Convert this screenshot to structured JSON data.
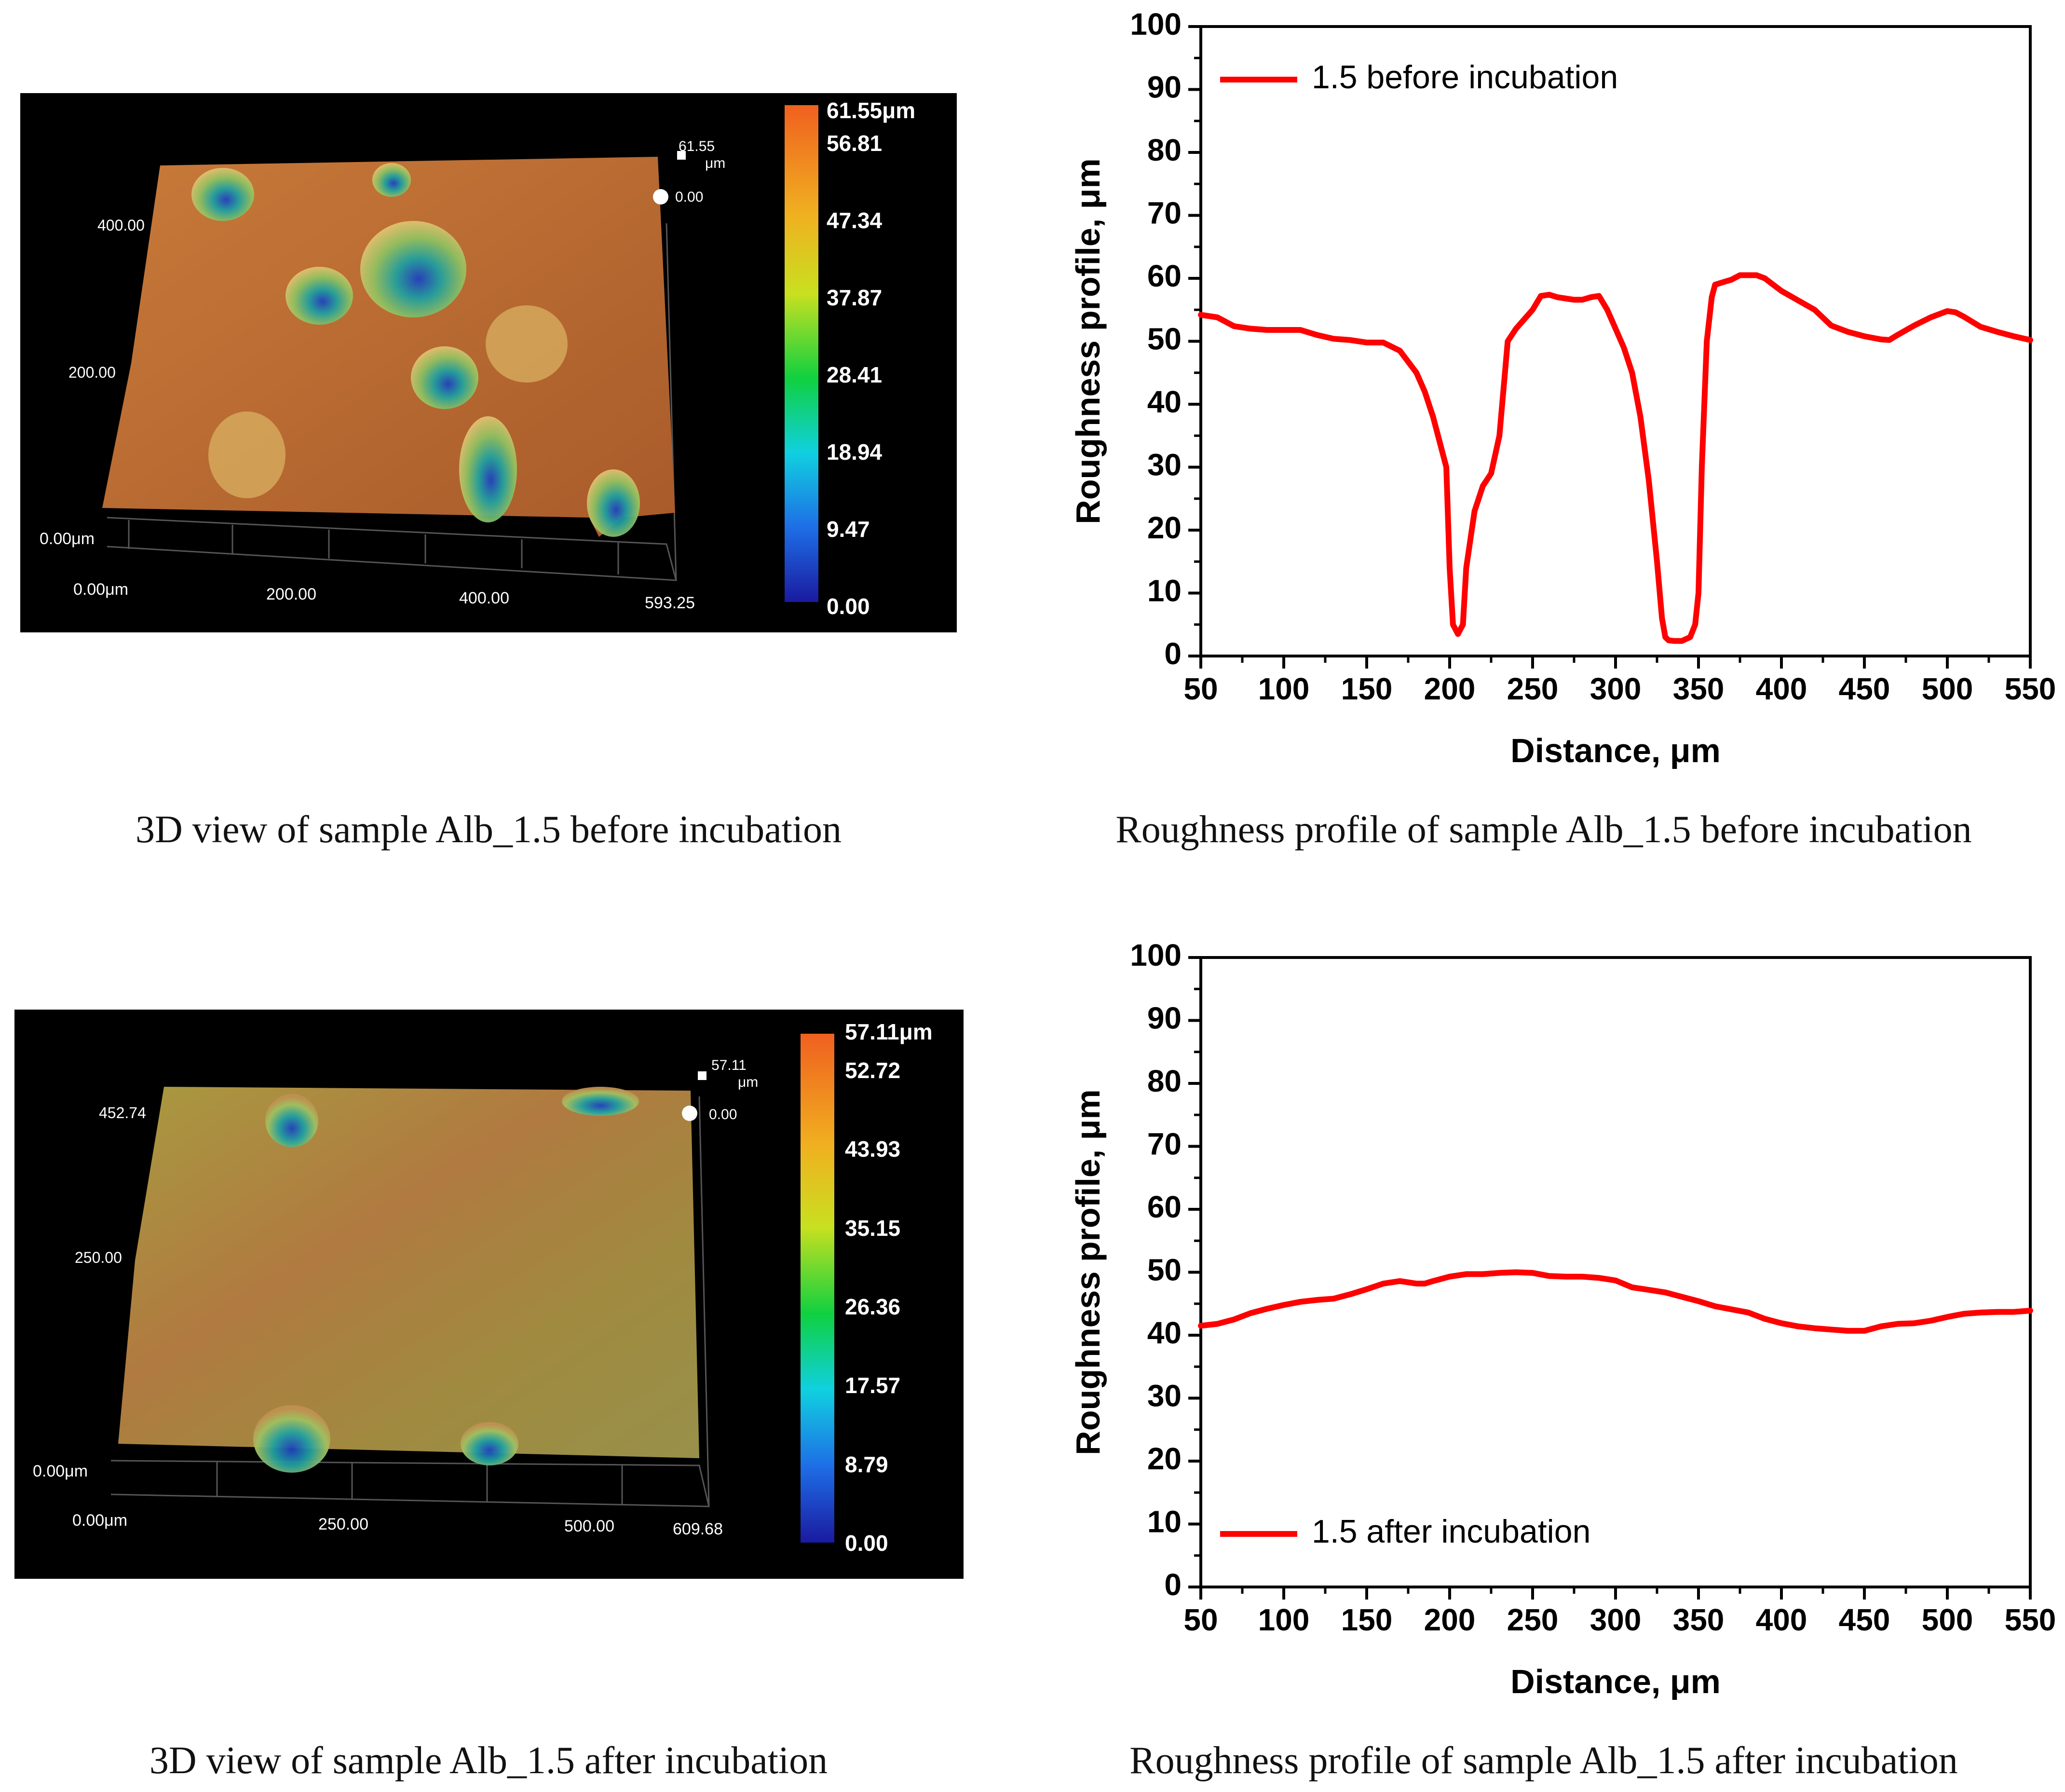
{
  "panels_3d": [
    {
      "scale": {
        "max_label": "61.55μm",
        "ticks": [
          "56.81",
          "47.34",
          "37.87",
          "28.41",
          "18.94",
          "9.47",
          "0.00"
        ]
      },
      "axis": {
        "y_top": "400.00",
        "y_mid": "200.00",
        "z_origin": "0.00μm",
        "x_origin": "0.00μm",
        "x_mid": "200.00",
        "x_mid2": "400.00",
        "x_end": "593.25"
      },
      "marker": {
        "top_value": "61.55",
        "top_unit": "μm",
        "bottom_value": "0.00"
      }
    },
    {
      "scale": {
        "max_label": "57.11μm",
        "ticks": [
          "52.72",
          "43.93",
          "35.15",
          "26.36",
          "17.57",
          "8.79",
          "0.00"
        ]
      },
      "axis": {
        "y_top": "452.74",
        "y_mid": "250.00",
        "z_origin": "0.00μm",
        "x_origin": "0.00μm",
        "x_mid": "250.00",
        "x_mid2": "500.00",
        "x_end": "609.68"
      },
      "marker": {
        "top_value": "57.11",
        "top_unit": "μm",
        "bottom_value": "0.00"
      }
    }
  ],
  "captions": {
    "top_left": "3D view of sample Alb_1.5 before incubation",
    "top_right": "Roughness profile of sample Alb_1.5 before incubation",
    "bottom_left": "3D view of sample Alb_1.5 after incubation",
    "bottom_right": "Roughness profile of sample Alb_1.5 after incubation"
  },
  "colors": {
    "line": "#ff0000",
    "axis": "#000000"
  },
  "chart_data": [
    {
      "type": "line",
      "title": "",
      "xlabel": "Distance, μm",
      "ylabel": "Roughness profile, μm",
      "xlim": [
        50,
        550
      ],
      "ylim": [
        0,
        100
      ],
      "xticks": [
        50,
        100,
        150,
        200,
        250,
        300,
        350,
        400,
        450,
        500,
        550
      ],
      "yticks": [
        0,
        10,
        20,
        30,
        40,
        50,
        60,
        70,
        80,
        90,
        100
      ],
      "legend": {
        "label": "1.5 before incubation",
        "position": "top-left"
      },
      "series": [
        {
          "name": "1.5 before incubation",
          "x": [
            50,
            60,
            70,
            80,
            90,
            100,
            110,
            120,
            130,
            140,
            150,
            160,
            170,
            180,
            185,
            190,
            195,
            198,
            200,
            202,
            205,
            208,
            210,
            215,
            220,
            225,
            230,
            235,
            240,
            250,
            255,
            260,
            265,
            270,
            275,
            280,
            285,
            290,
            295,
            300,
            305,
            310,
            315,
            320,
            325,
            328,
            330,
            332,
            335,
            340,
            345,
            348,
            350,
            352,
            355,
            358,
            360,
            365,
            370,
            375,
            380,
            385,
            390,
            395,
            400,
            410,
            420,
            430,
            440,
            450,
            460,
            465,
            470,
            480,
            490,
            500,
            505,
            510,
            520,
            530,
            540,
            550
          ],
          "y": [
            54.2,
            53.8,
            52.4,
            52,
            51.8,
            51.8,
            51.8,
            51,
            50.4,
            50.2,
            49.8,
            49.8,
            48.5,
            45,
            42,
            38,
            33,
            30,
            14,
            5,
            3.5,
            5,
            14,
            23,
            27,
            29,
            35,
            50,
            52,
            55,
            57.2,
            57.4,
            57,
            56.8,
            56.6,
            56.6,
            57,
            57.2,
            55,
            52,
            49,
            45,
            38,
            28,
            15,
            6,
            3,
            2.5,
            2.4,
            2.4,
            3,
            5,
            10,
            30,
            50,
            57,
            59,
            59.4,
            59.8,
            60.5,
            60.5,
            60.5,
            60,
            59,
            58,
            56.5,
            55,
            52.5,
            51.5,
            50.8,
            50.3,
            50.2,
            51,
            52.5,
            53.8,
            54.8,
            54.6,
            53.9,
            52.3,
            51.5,
            50.8,
            50.2
          ]
        }
      ]
    },
    {
      "type": "line",
      "title": "",
      "xlabel": "Distance, μm",
      "ylabel": "Roughness profile, μm",
      "xlim": [
        50,
        550
      ],
      "ylim": [
        0,
        100
      ],
      "xticks": [
        50,
        100,
        150,
        200,
        250,
        300,
        350,
        400,
        450,
        500,
        550
      ],
      "yticks": [
        0,
        10,
        20,
        30,
        40,
        50,
        60,
        70,
        80,
        90,
        100
      ],
      "legend": {
        "label": "1.5 after incubation",
        "position": "bottom-left"
      },
      "series": [
        {
          "name": "1.5 after incubation",
          "x": [
            50,
            60,
            70,
            80,
            90,
            100,
            110,
            120,
            130,
            140,
            150,
            160,
            170,
            180,
            185,
            190,
            200,
            210,
            220,
            230,
            240,
            250,
            260,
            270,
            280,
            290,
            300,
            310,
            320,
            330,
            340,
            350,
            360,
            370,
            380,
            390,
            400,
            410,
            420,
            430,
            440,
            450,
            460,
            470,
            480,
            490,
            500,
            510,
            520,
            530,
            540,
            550
          ],
          "y": [
            41.5,
            41.8,
            42.5,
            43.5,
            44.2,
            44.8,
            45.3,
            45.6,
            45.8,
            46.5,
            47.3,
            48.2,
            48.6,
            48.2,
            48.2,
            48.6,
            49.3,
            49.7,
            49.7,
            49.9,
            50,
            49.9,
            49.4,
            49.3,
            49.3,
            49.1,
            48.7,
            47.6,
            47.2,
            46.8,
            46.1,
            45.4,
            44.6,
            44.1,
            43.6,
            42.6,
            41.9,
            41.4,
            41.1,
            40.9,
            40.7,
            40.7,
            41.4,
            41.8,
            41.9,
            42.3,
            42.9,
            43.4,
            43.6,
            43.7,
            43.7,
            43.9
          ]
        }
      ]
    }
  ]
}
